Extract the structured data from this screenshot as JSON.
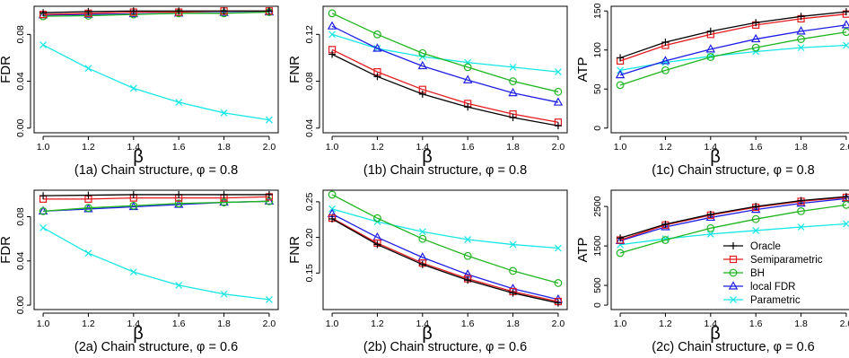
{
  "legend": {
    "placement": "bottom-right of panel 2c",
    "entries": [
      {
        "name": "Oracle",
        "color": "#000000",
        "marker": "plus"
      },
      {
        "name": "Semiparametric",
        "color": "#e31a1c",
        "marker": "square"
      },
      {
        "name": "BH",
        "color": "#1fb51f",
        "marker": "circle"
      },
      {
        "name": "local FDR",
        "color": "#1f1fe3",
        "marker": "triangle"
      },
      {
        "name": "Parametric",
        "color": "#17e6e6",
        "marker": "x"
      }
    ]
  },
  "chart_data": [
    {
      "id": "1a",
      "type": "line",
      "caption": "(1a) Chain structure,  φ = 0.8",
      "xlabel": "β",
      "ylabel": "FDR",
      "xlim": [
        1.0,
        2.0
      ],
      "ylim": [
        0.0,
        0.1
      ],
      "x": [
        1.0,
        1.2,
        1.4,
        1.6,
        1.8,
        2.0
      ],
      "xticks": [
        "1.0",
        "1.2",
        "1.4",
        "1.6",
        "1.8",
        "2.0"
      ],
      "yticks": [
        {
          "v": 0.0,
          "label": "0.00"
        },
        {
          "v": 0.04,
          "label": "0.04"
        },
        {
          "v": 0.08,
          "label": "0.08"
        }
      ],
      "series": [
        {
          "name": "Oracle",
          "values": [
            0.0985,
            0.0995,
            0.1,
            0.1,
            0.1,
            0.1
          ]
        },
        {
          "name": "Semiparametric",
          "values": [
            0.097,
            0.098,
            0.099,
            0.099,
            0.1,
            0.1
          ]
        },
        {
          "name": "BH",
          "values": [
            0.0955,
            0.096,
            0.097,
            0.098,
            0.098,
            0.099
          ]
        },
        {
          "name": "local FDR",
          "values": [
            0.0965,
            0.097,
            0.0975,
            0.098,
            0.0985,
            0.099
          ]
        },
        {
          "name": "Parametric",
          "values": [
            0.071,
            0.051,
            0.034,
            0.022,
            0.013,
            0.007
          ]
        }
      ]
    },
    {
      "id": "1b",
      "type": "line",
      "caption": "(1b) Chain structure,  φ = 0.8",
      "xlabel": "β",
      "ylabel": "FNR",
      "xlim": [
        1.0,
        2.0
      ],
      "ylim": [
        0.04,
        0.14
      ],
      "x": [
        1.0,
        1.2,
        1.4,
        1.6,
        1.8,
        2.0
      ],
      "xticks": [
        "1.0",
        "1.2",
        "1.4",
        "1.6",
        "1.8",
        "2.0"
      ],
      "yticks": [
        {
          "v": 0.04,
          "label": "0.04"
        },
        {
          "v": 0.08,
          "label": "0.08"
        },
        {
          "v": 0.12,
          "label": "0.12"
        }
      ],
      "series": [
        {
          "name": "Oracle",
          "values": [
            0.103,
            0.084,
            0.069,
            0.058,
            0.049,
            0.042
          ]
        },
        {
          "name": "Semiparametric",
          "values": [
            0.107,
            0.088,
            0.073,
            0.061,
            0.052,
            0.045
          ]
        },
        {
          "name": "BH",
          "values": [
            0.138,
            0.12,
            0.104,
            0.092,
            0.08,
            0.071
          ]
        },
        {
          "name": "local FDR",
          "values": [
            0.127,
            0.108,
            0.093,
            0.081,
            0.07,
            0.062
          ]
        },
        {
          "name": "Parametric",
          "values": [
            0.12,
            0.108,
            0.101,
            0.096,
            0.092,
            0.088
          ]
        }
      ]
    },
    {
      "id": "1c",
      "type": "line",
      "caption": "(1c) Chain structure,  φ = 0.8",
      "xlabel": "β",
      "ylabel": "ATP",
      "xlim": [
        1.0,
        2.0
      ],
      "ylim": [
        0,
        150
      ],
      "x": [
        1.0,
        1.2,
        1.4,
        1.6,
        1.8,
        2.0
      ],
      "xticks": [
        "1.0",
        "1.2",
        "1.4",
        "1.6",
        "1.8",
        "2.0"
      ],
      "yticks": [
        {
          "v": 0,
          "label": "0"
        },
        {
          "v": 50,
          "label": "50"
        },
        {
          "v": 100,
          "label": "100"
        },
        {
          "v": 150,
          "label": "150"
        }
      ],
      "series": [
        {
          "name": "Oracle",
          "values": [
            90,
            110,
            124,
            135,
            143,
            149
          ]
        },
        {
          "name": "Semiparametric",
          "values": [
            86,
            106,
            120,
            132,
            140,
            146
          ]
        },
        {
          "name": "BH",
          "values": [
            55,
            74,
            91,
            103,
            114,
            123
          ]
        },
        {
          "name": "local FDR",
          "values": [
            68,
            86,
            101,
            114,
            124,
            132
          ]
        },
        {
          "name": "Parametric",
          "values": [
            74,
            84,
            92,
            98,
            103,
            106
          ]
        }
      ]
    },
    {
      "id": "2a",
      "type": "line",
      "caption": "(2a) Chain structure,  φ = 0.6",
      "xlabel": "β",
      "ylabel": "FDR",
      "xlim": [
        1.0,
        2.0
      ],
      "ylim": [
        0.0,
        0.1
      ],
      "x": [
        1.0,
        1.2,
        1.4,
        1.6,
        1.8,
        2.0
      ],
      "xticks": [
        "1.0",
        "1.2",
        "1.4",
        "1.6",
        "1.8",
        "2.0"
      ],
      "yticks": [
        {
          "v": 0.0,
          "label": "0.00"
        },
        {
          "v": 0.04,
          "label": "0.04"
        },
        {
          "v": 0.08,
          "label": "0.08"
        }
      ],
      "series": [
        {
          "name": "Oracle",
          "values": [
            0.099,
            0.0995,
            0.1,
            0.1,
            0.1,
            0.1
          ]
        },
        {
          "name": "Semiparametric",
          "values": [
            0.096,
            0.096,
            0.097,
            0.097,
            0.097,
            0.098
          ]
        },
        {
          "name": "BH",
          "values": [
            0.085,
            0.088,
            0.09,
            0.092,
            0.093,
            0.094
          ]
        },
        {
          "name": "local FDR",
          "values": [
            0.085,
            0.087,
            0.089,
            0.091,
            0.093,
            0.094
          ]
        },
        {
          "name": "Parametric",
          "values": [
            0.07,
            0.047,
            0.03,
            0.018,
            0.01,
            0.005
          ]
        }
      ]
    },
    {
      "id": "2b",
      "type": "line",
      "caption": "(2b) Chain structure,  φ = 0.6",
      "xlabel": "β",
      "ylabel": "FNR",
      "xlim": [
        1.0,
        2.0
      ],
      "ylim": [
        0.105,
        0.26
      ],
      "x": [
        1.0,
        1.2,
        1.4,
        1.6,
        1.8,
        2.0
      ],
      "xticks": [
        "1.0",
        "1.2",
        "1.4",
        "1.6",
        "1.8",
        "2.0"
      ],
      "yticks": [
        {
          "v": 0.15,
          "label": "0.15"
        },
        {
          "v": 0.2,
          "label": "0.20"
        },
        {
          "v": 0.25,
          "label": "0.25"
        }
      ],
      "series": [
        {
          "name": "Oracle",
          "values": [
            0.226,
            0.19,
            0.162,
            0.14,
            0.122,
            0.108
          ]
        },
        {
          "name": "Semiparametric",
          "values": [
            0.227,
            0.192,
            0.164,
            0.142,
            0.124,
            0.11
          ]
        },
        {
          "name": "BH",
          "values": [
            0.26,
            0.227,
            0.198,
            0.174,
            0.153,
            0.136
          ]
        },
        {
          "name": "local FDR",
          "values": [
            0.233,
            0.2,
            0.172,
            0.148,
            0.128,
            0.113
          ]
        },
        {
          "name": "Parametric",
          "values": [
            0.24,
            0.222,
            0.208,
            0.197,
            0.19,
            0.185
          ]
        }
      ]
    },
    {
      "id": "2c",
      "type": "line",
      "caption": "(2c) Chain structure,  φ = 0.6",
      "xlabel": "β",
      "ylabel": "ATP",
      "xlim": [
        1.0,
        2.0
      ],
      "ylim": [
        0,
        2800
      ],
      "x": [
        1.0,
        1.2,
        1.4,
        1.6,
        1.8,
        2.0
      ],
      "xticks": [
        "1.0",
        "1.2",
        "1.4",
        "1.6",
        "1.8",
        "2.0"
      ],
      "yticks": [
        {
          "v": 0,
          "label": "0"
        },
        {
          "v": 500,
          "label": "500"
        },
        {
          "v": 1500,
          "label": "1500"
        },
        {
          "v": 2500,
          "label": "2500"
        }
      ],
      "series": [
        {
          "name": "Oracle",
          "values": [
            1700,
            2050,
            2300,
            2500,
            2650,
            2750
          ]
        },
        {
          "name": "Semiparametric",
          "values": [
            1650,
            2030,
            2280,
            2480,
            2630,
            2730
          ]
        },
        {
          "name": "BH",
          "values": [
            1320,
            1650,
            1950,
            2180,
            2380,
            2540
          ]
        },
        {
          "name": "local FDR",
          "values": [
            1630,
            1980,
            2220,
            2420,
            2580,
            2700
          ]
        },
        {
          "name": "Parametric",
          "values": [
            1530,
            1680,
            1800,
            1890,
            1980,
            2060
          ]
        }
      ]
    }
  ]
}
